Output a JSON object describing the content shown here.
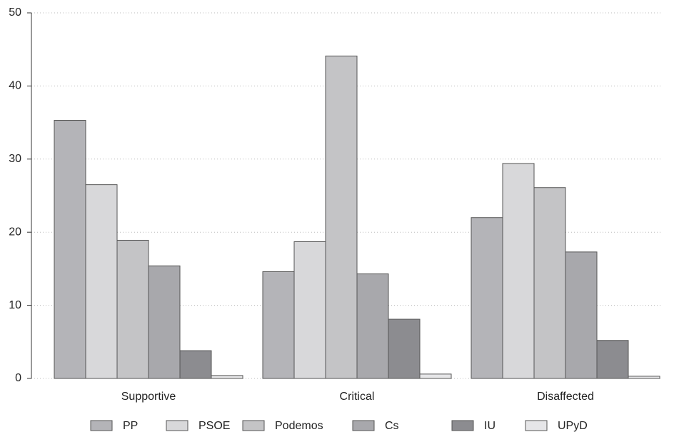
{
  "chart_data": {
    "type": "bar",
    "categories": [
      "Supportive",
      "Critical",
      "Disaffected"
    ],
    "series": [
      {
        "name": "PP",
        "color": "#b4b4b8",
        "values": [
          35.3,
          14.6,
          22.0
        ]
      },
      {
        "name": "PSOE",
        "color": "#d8d8da",
        "values": [
          26.5,
          18.7,
          29.4
        ]
      },
      {
        "name": "Podemos",
        "color": "#c4c4c6",
        "values": [
          18.9,
          44.1,
          26.1
        ]
      },
      {
        "name": "Cs",
        "color": "#a8a8ac",
        "values": [
          15.4,
          14.3,
          17.3
        ]
      },
      {
        "name": "IU",
        "color": "#8c8c90",
        "values": [
          3.8,
          8.1,
          5.2
        ]
      },
      {
        "name": "UPyD",
        "color": "#e6e6e8",
        "values": [
          0.4,
          0.6,
          0.3
        ]
      }
    ],
    "ylim": [
      0,
      50
    ],
    "yticks": [
      0,
      10,
      20,
      30,
      40,
      50
    ],
    "grid": true
  }
}
